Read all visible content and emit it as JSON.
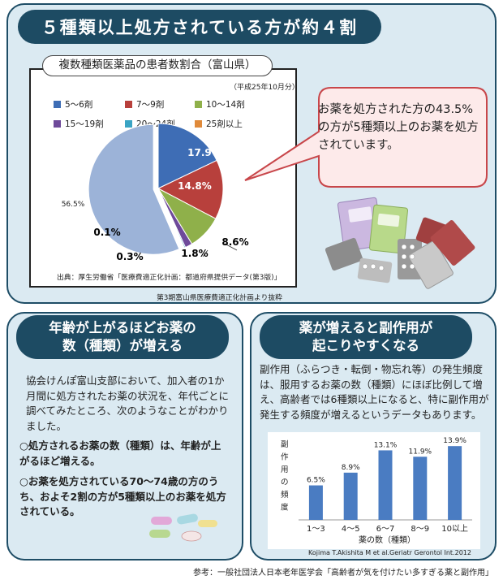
{
  "main_heading": "５種類以上処方されている方が約４割",
  "colors": {
    "accent_dark": "#1d4b63",
    "panel_bg": "#dbeaf2",
    "callout_bg": "#fdeaea",
    "callout_border": "#c8464a",
    "bar": "#4a7cc2"
  },
  "callout": {
    "text": "お薬を処方された方の43.5%の方が5種類以上のお薬を処方されています。"
  },
  "chart_source": "出典：厚生労働省「医療費適正化計画：都道府県提供データ(第3版)」",
  "plan_note": "第3期富山県医療費適正化計画より抜粋",
  "left": {
    "heading_line1": "年齢が上がるほどお薬の",
    "heading_line2": "数（種類）が増える",
    "body": "協会けんぽ富山支部において、加入者の1か月間に処方されたお薬の状況を、年代ごとに調べてみたところ、次のようなことがわかりました。",
    "bullet1": "○処方されるお薬の数（種類）は、年齢が上がるほど増える。",
    "bullet2": "○お薬を処方されている70～74歳の方のうち、およそ2割の方が5種類以上のお薬を処方されている。"
  },
  "right": {
    "heading_line1": "薬が増えると副作用が",
    "heading_line2": "起こりやすくなる",
    "body": "副作用（ふらつき・転倒・物忘れ等）の発生頻度は、服用するお薬の数（種類）にほぼ比例して増え、高齢者では6種類以上になると、特に副作用が発生する頻度が増えるというデータもあります。"
  },
  "bar_citation": "Kojima T.Akishita M et al.Geriatr Gerontol Int.2012",
  "footer": "参考：一般社団法人日本老年医学会「高齢者が気を付けたい多すぎる薬と副作用」",
  "chart_data": [
    {
      "type": "pie",
      "title": "複数種類医薬品の患者数割合（富山県）",
      "subtitle": "（平成25年10月分）",
      "categories": [
        "5～6剤",
        "7～9剤",
        "10～14剤",
        "15～19剤",
        "20～24剤",
        "25剤以上",
        ""
      ],
      "values": [
        17.9,
        14.8,
        8.6,
        1.8,
        0.3,
        0.1,
        56.5
      ],
      "labels": [
        "17.9%",
        "14.8%",
        "8.6%",
        "1.8%",
        "0.3%",
        "0.1%",
        "56.5%"
      ],
      "colors": [
        "#3e6db5",
        "#b8403c",
        "#8fb04a",
        "#6e4a9a",
        "#3aa4c4",
        "#e08a3a",
        "#9cb3d8"
      ],
      "legend_placement": "top"
    },
    {
      "type": "bar",
      "categories": [
        "1～3",
        "4～5",
        "6～7",
        "8～9",
        "10以上"
      ],
      "values": [
        6.5,
        8.9,
        13.1,
        11.9,
        13.9
      ],
      "labels": [
        "6.5%",
        "8.9%",
        "13.1%",
        "11.9%",
        "13.9%"
      ],
      "xlabel": "薬の数（種類）",
      "ylabel": "副作用の頻度",
      "ylim": [
        0,
        15
      ],
      "grid": false
    }
  ]
}
